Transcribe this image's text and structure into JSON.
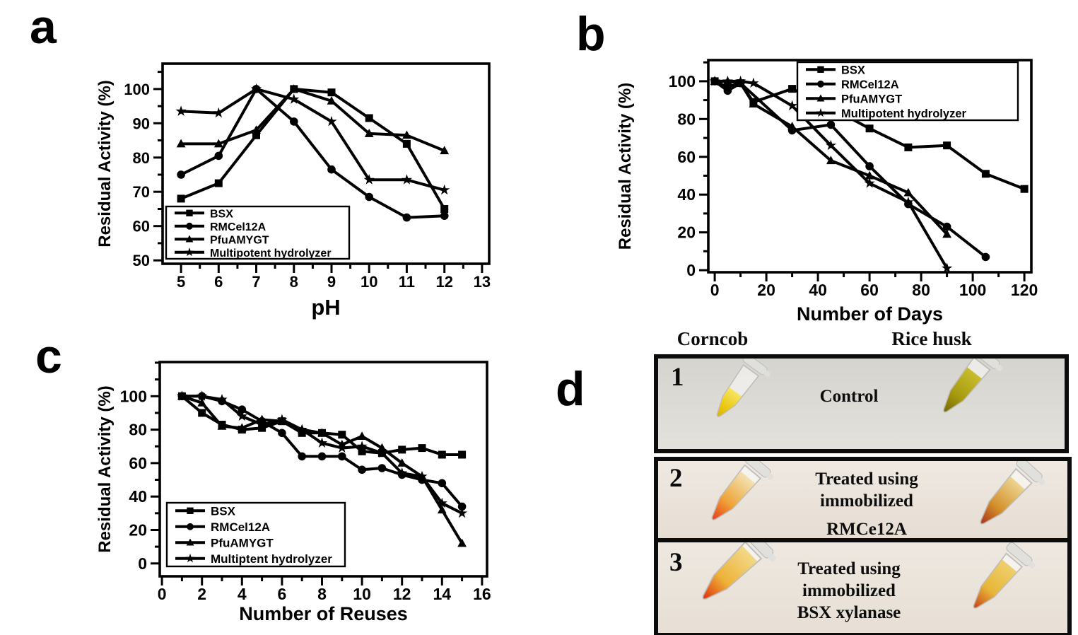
{
  "panels": {
    "a": {
      "label": "a"
    },
    "b": {
      "label": "b"
    },
    "c": {
      "label": "c"
    },
    "d": {
      "label": "d",
      "column_headers": [
        "Corncob",
        "Rice husk"
      ],
      "rows": [
        {
          "number": "1",
          "caption_lines": [
            "Control"
          ],
          "tubes": [
            {
              "name": "corncob-control-tube",
              "liquid_stops": [
                "#f6e564",
                "#ecc80f",
                "#d6b106"
              ],
              "fill_level": 0.52
            },
            {
              "name": "rice-husk-control-tube",
              "liquid_stops": [
                "#c8bd2e",
                "#a79a0e",
                "#6f6206"
              ],
              "fill_level": 0.8
            }
          ]
        },
        {
          "number": "2",
          "caption_lines": [
            "Treated using",
            "immobilized",
            "RMCe12A"
          ],
          "tubes": [
            {
              "name": "corncob-rmce12a-tube",
              "liquid_stops": [
                "#f2e2b4",
                "#efa438",
                "#e73314"
              ],
              "fill_level": 0.88
            },
            {
              "name": "rice-husk-rmce12a-tube",
              "liquid_stops": [
                "#ecd491",
                "#d4912c",
                "#a52a12"
              ],
              "fill_level": 0.85
            }
          ]
        },
        {
          "number": "3",
          "caption_lines": [
            "Treated using",
            "immobilized",
            "BSX xylanase"
          ],
          "tubes": [
            {
              "name": "corncob-bsx-tube",
              "liquid_stops": [
                "#f2d888",
                "#eeb238",
                "#dd2408"
              ],
              "fill_level": 0.93
            },
            {
              "name": "rice-husk-bsx-tube",
              "liquid_stops": [
                "#eecf6e",
                "#e7b637",
                "#c43612"
              ],
              "fill_level": 0.88
            }
          ]
        }
      ]
    }
  },
  "colors": {
    "line": "#000000",
    "frame": "#000000",
    "legend_border": "#000000",
    "photo_bg_row1_top": "#d6d4cf",
    "photo_bg_row1_bottom": "#e3e1db",
    "photo_bg_row2_top": "#efe9e2",
    "photo_bg_row2_bottom": "#e6ddd3",
    "photo_bg_row3_top": "#eee8e0",
    "photo_bg_row3_bottom": "#e7dfd5"
  },
  "chart_data": [
    {
      "id": "a",
      "type": "line",
      "title": "",
      "xlabel": "pH",
      "ylabel": "Residual Activity (%)",
      "xlim": [
        4.51,
        13.19
      ],
      "ylim": [
        49,
        107.4
      ],
      "xticks": [
        5,
        6,
        7,
        8,
        9,
        10,
        11,
        12,
        13
      ],
      "yticks": [
        50,
        60,
        70,
        80,
        90,
        100
      ],
      "xminor_step": 0.5,
      "yminor_step": 5,
      "grid": false,
      "legend_position": "lower-left",
      "x": [
        5,
        6,
        7,
        8,
        9,
        10,
        11,
        12
      ],
      "series": [
        {
          "name": "BSX",
          "marker": "square",
          "values": [
            68,
            72.5,
            86.5,
            100,
            99,
            91.5,
            84,
            65
          ]
        },
        {
          "name": "RMCel12A",
          "marker": "circle",
          "values": [
            75,
            80.5,
            100,
            90.5,
            76.5,
            68.5,
            62.5,
            63
          ]
        },
        {
          "name": "PfuAMYGT",
          "marker": "triangle",
          "values": [
            84,
            84,
            88,
            100,
            96.5,
            87,
            86.5,
            82
          ]
        },
        {
          "name": "Multipotent hydrolyzer",
          "marker": "star",
          "values": [
            93.5,
            93,
            100,
            97,
            90.5,
            73.5,
            73.5,
            70.5
          ]
        }
      ]
    },
    {
      "id": "b",
      "type": "line",
      "title": "",
      "xlabel": "Number of Days",
      "ylabel": "Residual Activity (%)",
      "xlim": [
        -2.5,
        122.7
      ],
      "ylim": [
        -1.1,
        111.2
      ],
      "xticks": [
        0,
        20,
        40,
        60,
        80,
        100,
        120
      ],
      "yticks": [
        0,
        20,
        40,
        60,
        80,
        100
      ],
      "xminor_step": 10,
      "yminor_step": 10,
      "grid": false,
      "legend_position": "top-right",
      "series": [
        {
          "name": "BSX",
          "marker": "square",
          "x": [
            0,
            5,
            10,
            15,
            30,
            45,
            60,
            75,
            90,
            105,
            120
          ],
          "values": [
            100,
            97,
            99,
            89,
            96,
            86,
            75,
            65,
            66,
            51,
            43
          ]
        },
        {
          "name": "RMCel12A",
          "marker": "circle",
          "x": [
            0,
            5,
            10,
            30,
            45,
            60,
            75,
            90,
            105
          ],
          "values": [
            100,
            95,
            99,
            74,
            77,
            55,
            35,
            23,
            7
          ]
        },
        {
          "name": "PfuAMYGT",
          "marker": "triangle",
          "x": [
            0,
            5,
            10,
            15,
            30,
            45,
            60,
            75,
            90
          ],
          "values": [
            100,
            100,
            99,
            88,
            76,
            58,
            50,
            41,
            19
          ]
        },
        {
          "name": "Multipotent hydrolyzer",
          "marker": "star",
          "x": [
            0,
            5,
            10,
            15,
            30,
            45,
            60,
            75,
            90
          ],
          "values": [
            100,
            100,
            100,
            99,
            87,
            66,
            46,
            36,
            1
          ]
        }
      ]
    },
    {
      "id": "c",
      "type": "line",
      "title": "",
      "xlabel": "Number of Reuses",
      "ylabel": "Residual Activity (%)",
      "xlim": [
        -0.11,
        16.25
      ],
      "ylim": [
        -7.7,
        120.4
      ],
      "xticks": [
        0,
        2,
        4,
        6,
        8,
        10,
        12,
        14,
        16
      ],
      "yticks": [
        0,
        20,
        40,
        60,
        80,
        100
      ],
      "xminor_step": 1,
      "yminor_step": 10,
      "grid": false,
      "legend_position": "lower-left",
      "x": [
        1,
        2,
        3,
        4,
        5,
        6,
        7,
        8,
        9,
        10,
        11,
        12,
        13,
        14,
        15
      ],
      "series": [
        {
          "name": "BSX",
          "marker": "square",
          "values": [
            100,
            90,
            83,
            80,
            81,
            85,
            78,
            78,
            77,
            67,
            66,
            68,
            69,
            65,
            65
          ]
        },
        {
          "name": "RMCel12A",
          "marker": "circle",
          "values": [
            100,
            100,
            97,
            92,
            85,
            78,
            64,
            64,
            64,
            56,
            57,
            53,
            50,
            48,
            34
          ]
        },
        {
          "name": "PfuAMYGT",
          "marker": "triangle",
          "values": [
            100,
            96,
            82,
            81,
            86,
            85,
            80,
            78,
            71,
            76,
            69,
            60,
            52,
            32,
            12
          ]
        },
        {
          "name": "Multiptent hydrolyzer",
          "marker": "star",
          "values": [
            100,
            100,
            98,
            88,
            83,
            86,
            80,
            72,
            69,
            70,
            66,
            54,
            52,
            36,
            30
          ]
        }
      ]
    }
  ]
}
